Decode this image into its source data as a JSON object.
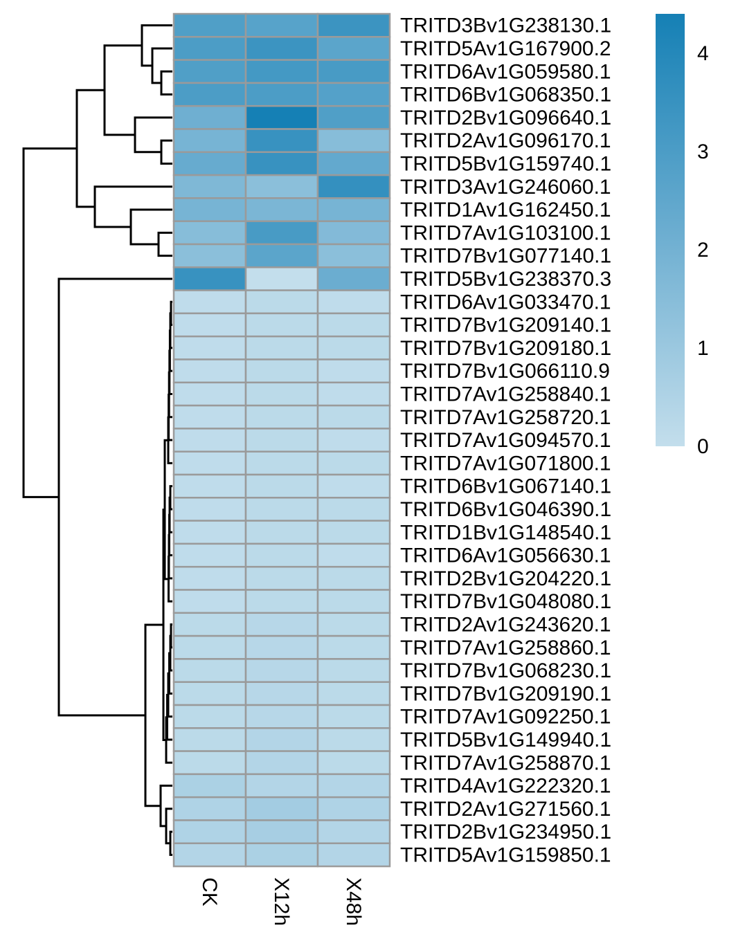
{
  "chart_data": {
    "type": "heatmap",
    "columns": [
      "CK",
      "X12h",
      "X48h"
    ],
    "rows": [
      "TRITD3Bv1G238130.1",
      "TRITD5Av1G167900.2",
      "TRITD6Av1G059580.1",
      "TRITD6Bv1G068350.1",
      "TRITD2Bv1G096640.1",
      "TRITD2Av1G096170.1",
      "TRITD5Bv1G159740.1",
      "TRITD3Av1G246060.1",
      "TRITD1Av1G162450.1",
      "TRITD7Av1G103100.1",
      "TRITD7Bv1G077140.1",
      "TRITD5Bv1G238370.3",
      "TRITD6Av1G033470.1",
      "TRITD7Bv1G209140.1",
      "TRITD7Bv1G209180.1",
      "TRITD7Bv1G066110.9",
      "TRITD7Av1G258840.1",
      "TRITD7Av1G258720.1",
      "TRITD7Av1G094570.1",
      "TRITD7Av1G071800.1",
      "TRITD6Bv1G067140.1",
      "TRITD6Bv1G046390.1",
      "TRITD1Bv1G148540.1",
      "TRITD6Av1G056630.1",
      "TRITD2Bv1G204220.1",
      "TRITD7Bv1G048080.1",
      "TRITD2Av1G243620.1",
      "TRITD7Av1G258860.1",
      "TRITD7Bv1G068230.1",
      "TRITD7Bv1G209190.1",
      "TRITD7Av1G092250.1",
      "TRITD5Bv1G149940.1",
      "TRITD7Av1G258870.1",
      "TRITD4Av1G222320.1",
      "TRITD2Av1G271560.1",
      "TRITD2Bv1G234950.1",
      "TRITD5Av1G159850.1"
    ],
    "values": [
      [
        2.9,
        2.7,
        3.4
      ],
      [
        3.0,
        3.4,
        2.6
      ],
      [
        2.9,
        3.2,
        3.1
      ],
      [
        3.0,
        3.0,
        2.8
      ],
      [
        2.1,
        4.4,
        2.9
      ],
      [
        1.9,
        3.5,
        1.5
      ],
      [
        2.3,
        3.5,
        2.4
      ],
      [
        1.7,
        1.4,
        3.6
      ],
      [
        1.9,
        1.8,
        1.9
      ],
      [
        1.5,
        3.1,
        1.6
      ],
      [
        1.4,
        2.6,
        1.4
      ],
      [
        3.5,
        0.0,
        2.2
      ],
      [
        0.1,
        0.2,
        0.1
      ],
      [
        0.1,
        0.2,
        0.2
      ],
      [
        0.1,
        0.2,
        0.2
      ],
      [
        0.1,
        0.2,
        0.1
      ],
      [
        0.1,
        0.2,
        0.1
      ],
      [
        0.1,
        0.2,
        0.2
      ],
      [
        0.1,
        0.2,
        0.1
      ],
      [
        0.1,
        0.2,
        0.2
      ],
      [
        0.1,
        0.2,
        0.1
      ],
      [
        0.1,
        0.2,
        0.2
      ],
      [
        0.1,
        0.2,
        0.2
      ],
      [
        0.1,
        0.2,
        0.1
      ],
      [
        0.1,
        0.2,
        0.2
      ],
      [
        0.1,
        0.2,
        0.2
      ],
      [
        0.2,
        0.3,
        0.2
      ],
      [
        0.2,
        0.3,
        0.2
      ],
      [
        0.2,
        0.3,
        0.2
      ],
      [
        0.2,
        0.3,
        0.2
      ],
      [
        0.2,
        0.3,
        0.2
      ],
      [
        0.2,
        0.4,
        0.2
      ],
      [
        0.2,
        0.4,
        0.2
      ],
      [
        0.6,
        0.4,
        0.4
      ],
      [
        0.5,
        0.8,
        0.5
      ],
      [
        0.5,
        0.7,
        0.4
      ],
      [
        0.4,
        0.6,
        0.4
      ]
    ],
    "legend": {
      "ticks": [
        0,
        1,
        2,
        3,
        4
      ],
      "range": [
        0,
        4.4
      ],
      "color_low": "#c3deec",
      "color_mid": "#6badd0",
      "color_high": "#1580b5"
    },
    "cell_border_color": "#9a9a9a",
    "row_dendrogram": true
  }
}
